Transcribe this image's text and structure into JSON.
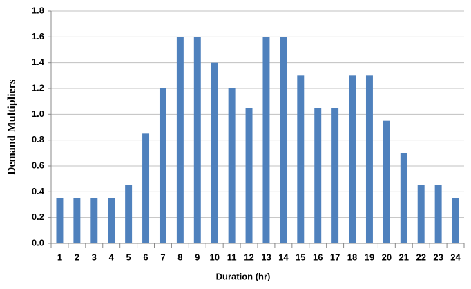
{
  "chart_data": {
    "type": "bar",
    "x_label": "Duration (hr)",
    "y_label": "Demand Multipliers",
    "categories": [
      "1",
      "2",
      "3",
      "4",
      "5",
      "6",
      "7",
      "8",
      "9",
      "10",
      "11",
      "12",
      "13",
      "14",
      "15",
      "16",
      "17",
      "18",
      "19",
      "20",
      "21",
      "22",
      "23",
      "24"
    ],
    "values": [
      0.35,
      0.35,
      0.35,
      0.35,
      0.45,
      0.85,
      1.2,
      1.6,
      1.6,
      1.4,
      1.2,
      1.05,
      1.6,
      1.6,
      1.3,
      1.05,
      1.05,
      1.3,
      1.3,
      0.95,
      0.7,
      0.45,
      0.45,
      0.35
    ],
    "color": "#4f81bd",
    "ylim": [
      0,
      1.8
    ],
    "yticks": [
      {
        "value": 0,
        "label": "0.0"
      },
      0.2,
      0.4,
      0.6,
      0.8,
      {
        "value": 1,
        "label": "1.0"
      },
      1.2,
      1.4,
      1.6,
      1.8
    ],
    "grid": true
  }
}
